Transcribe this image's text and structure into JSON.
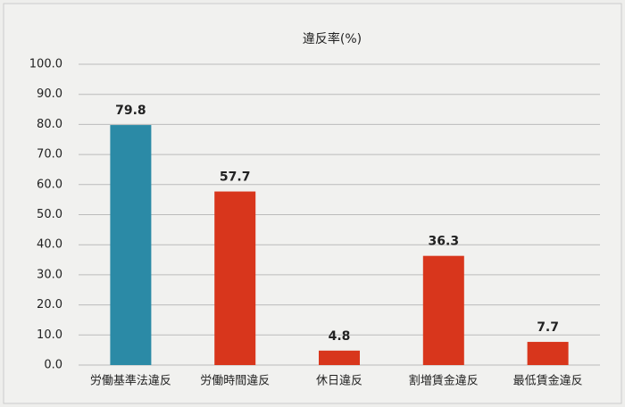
{
  "chart_data": {
    "type": "bar",
    "title": "違反率(%)",
    "categories": [
      "労働基準法違反",
      "労働時間違反",
      "休日違反",
      "割増賃金違反",
      "最低賃金違反"
    ],
    "values": [
      79.8,
      57.7,
      4.8,
      36.3,
      7.7
    ],
    "colors": [
      "#2b8aa6",
      "#d8361c",
      "#d8361c",
      "#d8361c",
      "#d8361c"
    ],
    "ylim": [
      0,
      100
    ],
    "yticks": [
      {
        "value": 0,
        "label": "0.0"
      },
      {
        "value": 10,
        "label": "10.0"
      },
      {
        "value": 20,
        "label": "20.0"
      },
      {
        "value": 30,
        "label": "30.0"
      },
      {
        "value": 40,
        "label": "40.0"
      },
      {
        "value": 50,
        "label": "50.0"
      },
      {
        "value": 60,
        "label": "60.0"
      },
      {
        "value": 70,
        "label": "70.0"
      },
      {
        "value": 80,
        "label": "80.0"
      },
      {
        "value": 90,
        "label": "90.0"
      },
      {
        "value": 100,
        "label": "100.0"
      }
    ],
    "grid": true
  }
}
